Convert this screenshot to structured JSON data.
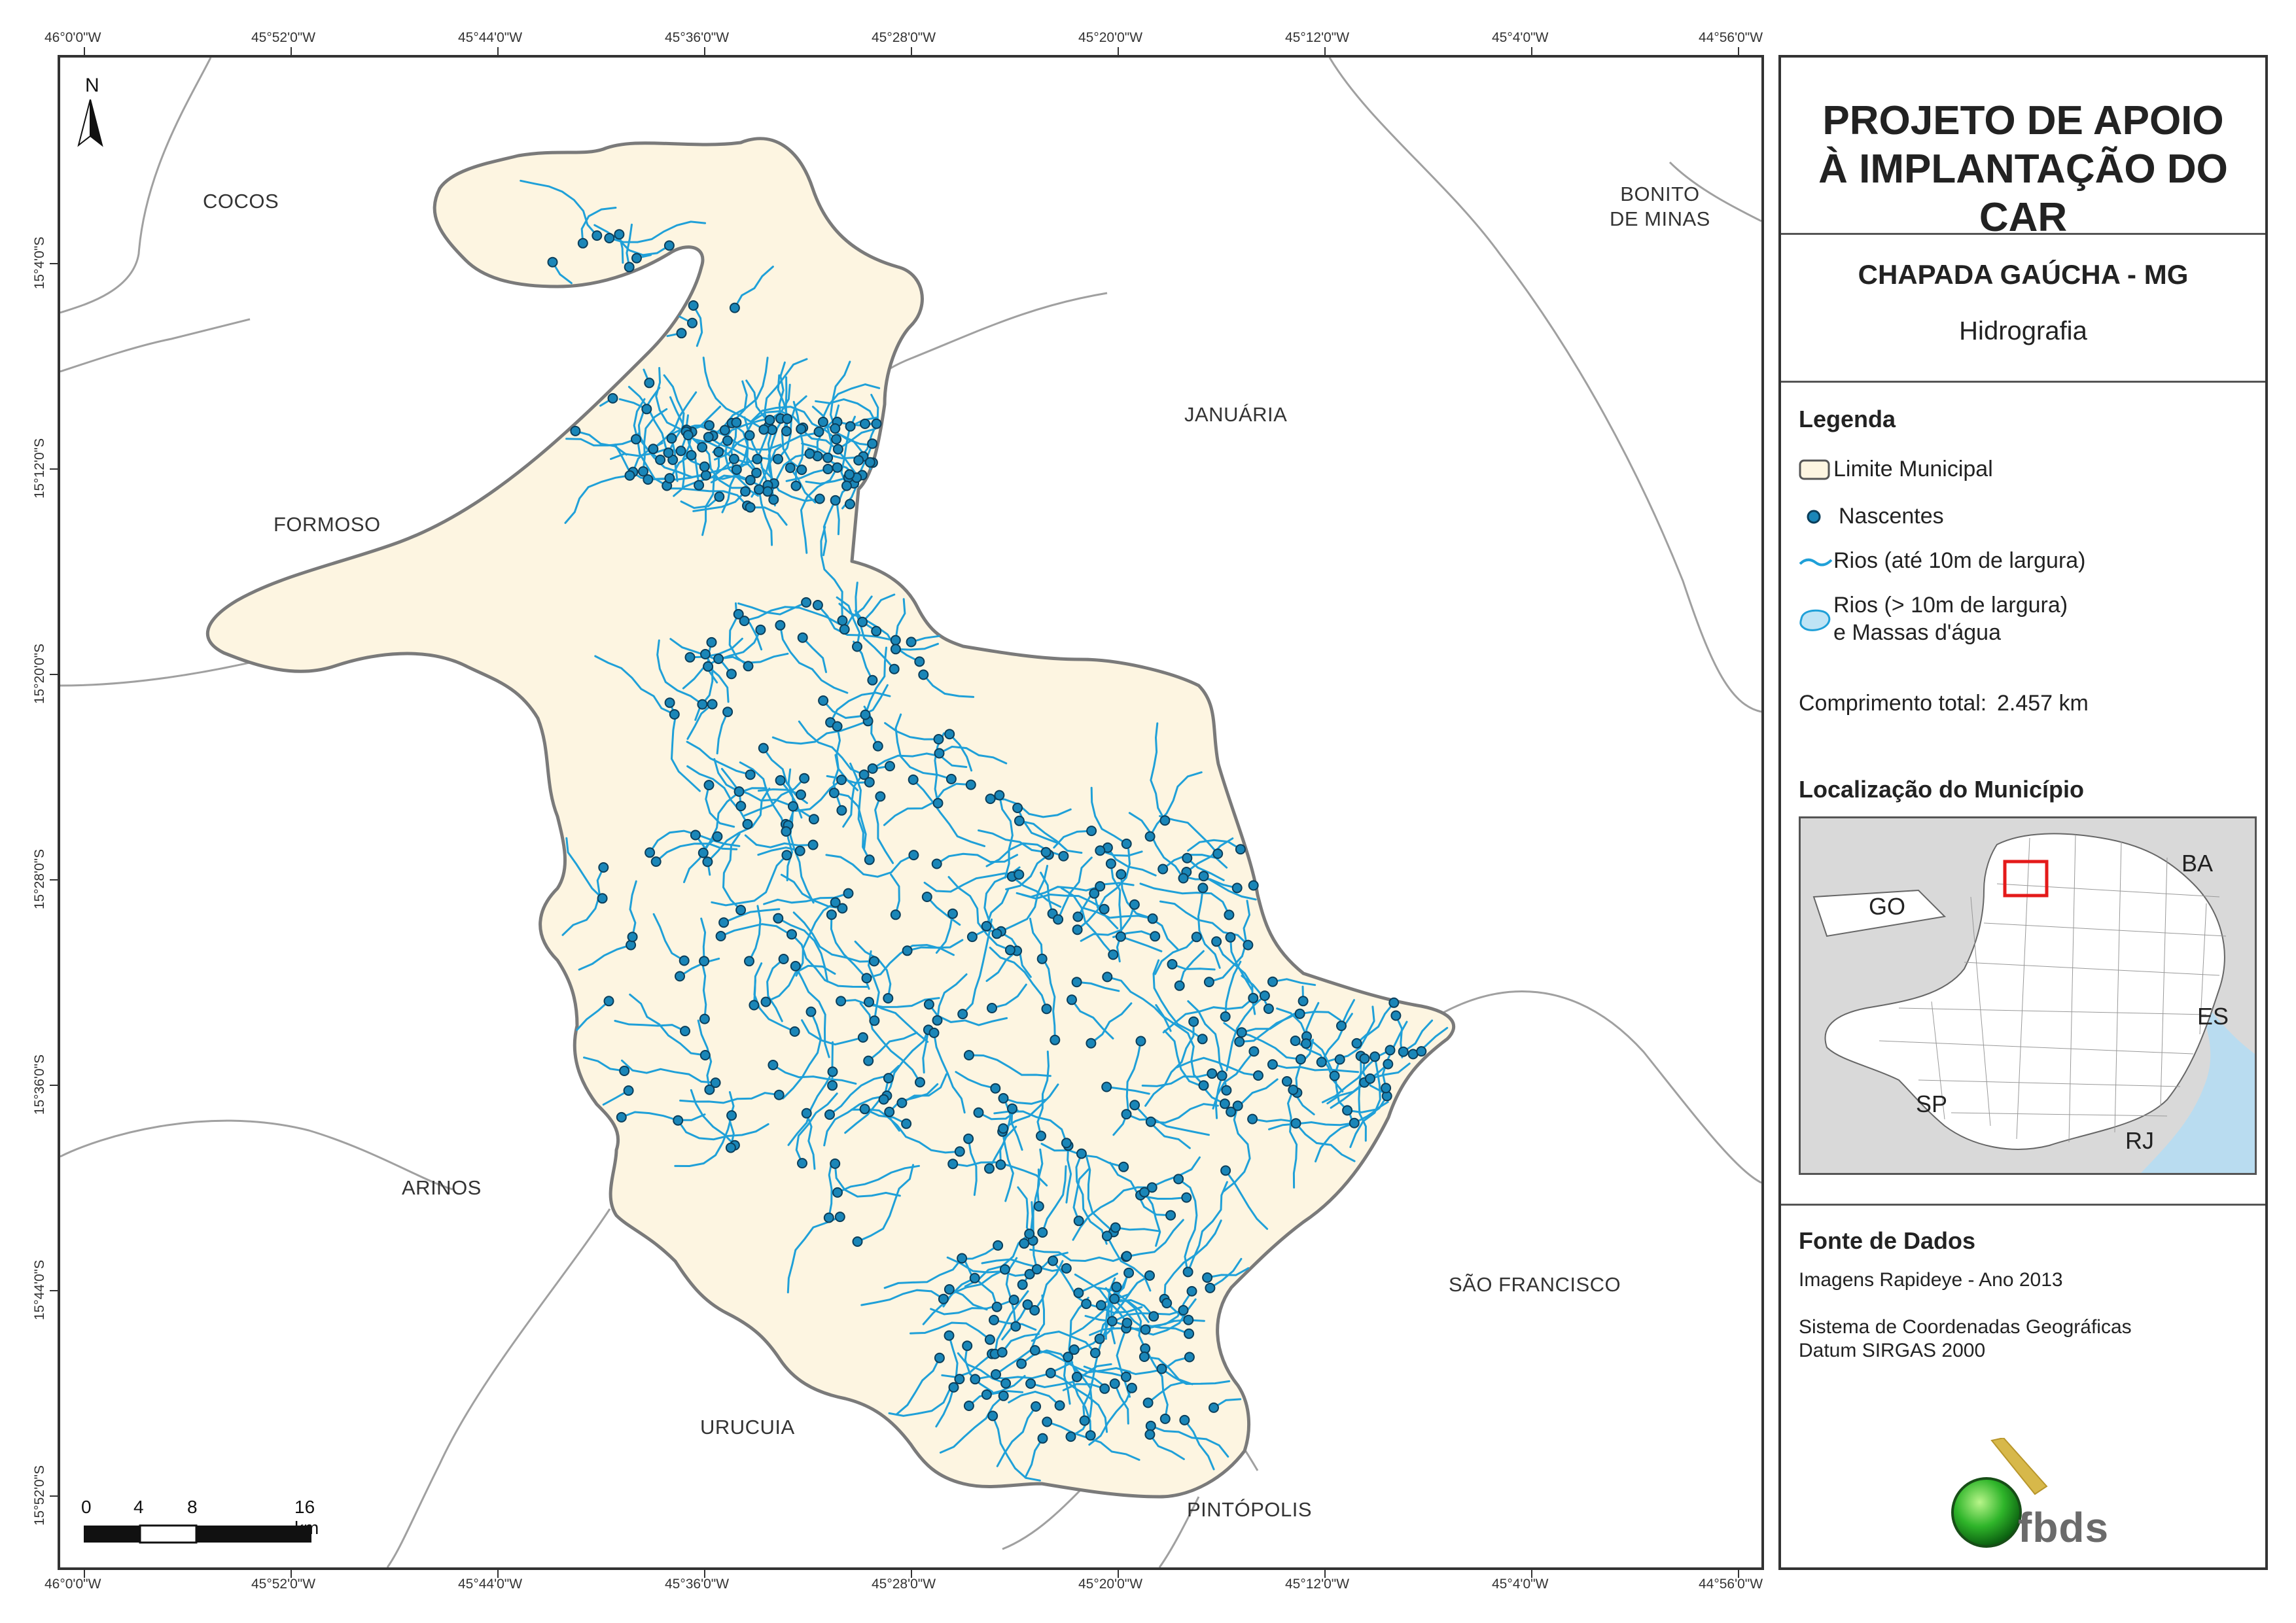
{
  "map": {
    "lon_ticks": [
      "46°0'0\"W",
      "45°52'0\"W",
      "45°44'0\"W",
      "45°36'0\"W",
      "45°28'0\"W",
      "45°20'0\"W",
      "45°12'0\"W",
      "45°4'0\"W",
      "44°56'0\"W"
    ],
    "lat_ticks": [
      "15°4'0\"S",
      "15°12'0\"S",
      "15°20'0\"S",
      "15°28'0\"S",
      "15°36'0\"S",
      "15°44'0\"S",
      "15°52'0\"S"
    ],
    "north_arrow": "N",
    "regions": {
      "cocos": "COCOS",
      "bonito": [
        "BONITO",
        "DE MINAS"
      ],
      "januaria": "JANUÁRIA",
      "formoso": "FORMOSO",
      "arinos": "ARINOS",
      "sao_francisco": "SÃO FRANCISCO",
      "urucuia": "URUCUIA",
      "pintopolis": "PINTÓPOLIS"
    },
    "scale": {
      "labels": [
        "0",
        "4",
        "8",
        "16 km"
      ]
    },
    "colors": {
      "municipality_fill": "#fdf5e1",
      "municipality_border": "#7a7a7a",
      "river": "#1fa0d8",
      "spring_fill": "#1a86b8",
      "spring_stroke": "#0b3e5a",
      "neighbor_border": "#a0a0a0"
    }
  },
  "panel": {
    "title": "PROJETO DE APOIO À IMPLANTAÇÃO DO CAR",
    "subtitle": "CHAPADA GAÚCHA - MG",
    "theme": "Hidrografia",
    "legend_heading": "Legenda",
    "legend": {
      "limit": "Limite Municipal",
      "springs": "Nascentes",
      "rivers_small": "Rios (até 10m de largura)",
      "rivers_large_1": "Rios (> 10m de largura)",
      "rivers_large_2": "e Massas d'água"
    },
    "total_length_label": "Comprimento total:",
    "total_length_value": "2.457 km",
    "location_heading": "Localização do Município",
    "inset_labels": {
      "go": "GO",
      "ba": "BA",
      "es": "ES",
      "sp": "SP",
      "rj": "RJ"
    },
    "source_heading": "Fonte de Dados",
    "source_lines": [
      "Imagens Rapideye - Ano 2013",
      "Sistema de Coordenadas Geográficas",
      "Datum SIRGAS 2000"
    ],
    "logo_text": "fbds"
  }
}
